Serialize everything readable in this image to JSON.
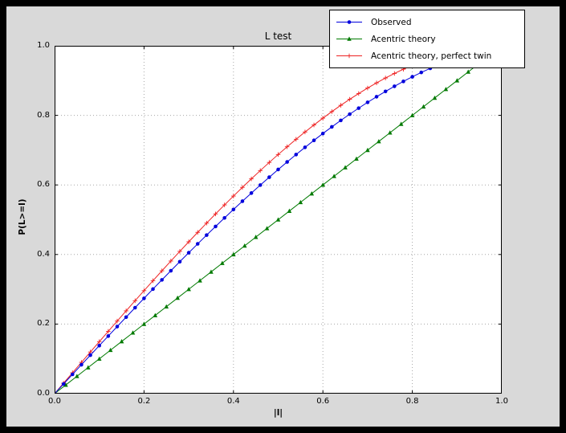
{
  "window": {
    "background": "#000000",
    "figure_background": "#d9d9d9",
    "axes_background": "#ffffff"
  },
  "chart_data": {
    "type": "line",
    "title": "L test",
    "xlabel": "|l|",
    "ylabel": "P(L>=l)",
    "xlim": [
      0,
      1
    ],
    "ylim": [
      0,
      1
    ],
    "grid": true,
    "grid_color": "#a8a8a8",
    "legend_position": "top-right",
    "xticks": [
      "0.0",
      "0.2",
      "0.4",
      "0.6",
      "0.8",
      "1.0"
    ],
    "yticks": [
      "0.0",
      "0.2",
      "0.4",
      "0.6",
      "0.8",
      "1.0"
    ],
    "draw_order": [
      1,
      2,
      0
    ],
    "series": [
      {
        "name": "Observed",
        "color": "#0000dd",
        "marker": "circle",
        "x": [
          0,
          0.02,
          0.04,
          0.06,
          0.08,
          0.1,
          0.12,
          0.14,
          0.16,
          0.18,
          0.2,
          0.22,
          0.24,
          0.26,
          0.28,
          0.3,
          0.32,
          0.34,
          0.36,
          0.38,
          0.4,
          0.42,
          0.44,
          0.46,
          0.48,
          0.5,
          0.52,
          0.54,
          0.56,
          0.58,
          0.6,
          0.62,
          0.64,
          0.66,
          0.68,
          0.7,
          0.72,
          0.74,
          0.76,
          0.78,
          0.8,
          0.82,
          0.84,
          0.86
        ],
        "y": [
          0,
          0.0277,
          0.0554,
          0.083,
          0.1106,
          0.1381,
          0.1655,
          0.1928,
          0.22,
          0.2471,
          0.2739,
          0.3006,
          0.3271,
          0.3533,
          0.3793,
          0.4051,
          0.4306,
          0.4558,
          0.4806,
          0.5052,
          0.5294,
          0.5532,
          0.5766,
          0.5996,
          0.6222,
          0.6444,
          0.6661,
          0.6873,
          0.708,
          0.7282,
          0.7478,
          0.7669,
          0.7855,
          0.8034,
          0.8207,
          0.8375,
          0.8535,
          0.8689,
          0.8836,
          0.8976,
          0.9109,
          0.9234,
          0.9352,
          0.9463
        ]
      },
      {
        "name": "Acentric theory",
        "color": "#007a00",
        "marker": "triangle",
        "x": [
          0,
          0.025,
          0.05,
          0.075,
          0.1,
          0.125,
          0.15,
          0.175,
          0.2,
          0.225,
          0.25,
          0.275,
          0.3,
          0.325,
          0.35,
          0.375,
          0.4,
          0.425,
          0.45,
          0.475,
          0.5,
          0.525,
          0.55,
          0.575,
          0.6,
          0.625,
          0.65,
          0.675,
          0.7,
          0.725,
          0.75,
          0.775,
          0.8,
          0.825,
          0.85,
          0.875,
          0.9,
          0.925,
          0.95,
          0.975
        ],
        "y": [
          0,
          0.025,
          0.05,
          0.075,
          0.1,
          0.125,
          0.15,
          0.175,
          0.2,
          0.225,
          0.25,
          0.275,
          0.3,
          0.325,
          0.35,
          0.375,
          0.4,
          0.425,
          0.45,
          0.475,
          0.5,
          0.525,
          0.55,
          0.575,
          0.6,
          0.625,
          0.65,
          0.675,
          0.7,
          0.725,
          0.75,
          0.775,
          0.8,
          0.825,
          0.85,
          0.875,
          0.9,
          0.925,
          0.95,
          0.975
        ]
      },
      {
        "name": "Acentric theory, perfect twin",
        "color": "#ee2222",
        "marker": "plus",
        "x": [
          0,
          0.02,
          0.04,
          0.06,
          0.08,
          0.1,
          0.12,
          0.14,
          0.16,
          0.18,
          0.2,
          0.22,
          0.24,
          0.26,
          0.28,
          0.3,
          0.32,
          0.34,
          0.36,
          0.38,
          0.4,
          0.42,
          0.44,
          0.46,
          0.48,
          0.5,
          0.52,
          0.54,
          0.56,
          0.58,
          0.6,
          0.62,
          0.64,
          0.66,
          0.68,
          0.7,
          0.72,
          0.74,
          0.76,
          0.78,
          0.8,
          0.82,
          0.84,
          0.86,
          0.88
        ],
        "y": [
          0,
          0.03,
          0.06,
          0.0899,
          0.1197,
          0.1495,
          0.1791,
          0.2086,
          0.238,
          0.2671,
          0.296,
          0.3247,
          0.3531,
          0.3812,
          0.409,
          0.4365,
          0.4636,
          0.4903,
          0.5167,
          0.5426,
          0.568,
          0.593,
          0.6174,
          0.6413,
          0.6647,
          0.6875,
          0.7097,
          0.7313,
          0.7522,
          0.7724,
          0.792,
          0.8108,
          0.8289,
          0.8463,
          0.8628,
          0.8785,
          0.8934,
          0.9074,
          0.9205,
          0.9327,
          0.944,
          0.9543,
          0.9636,
          0.972,
          0.9793
        ]
      }
    ]
  }
}
